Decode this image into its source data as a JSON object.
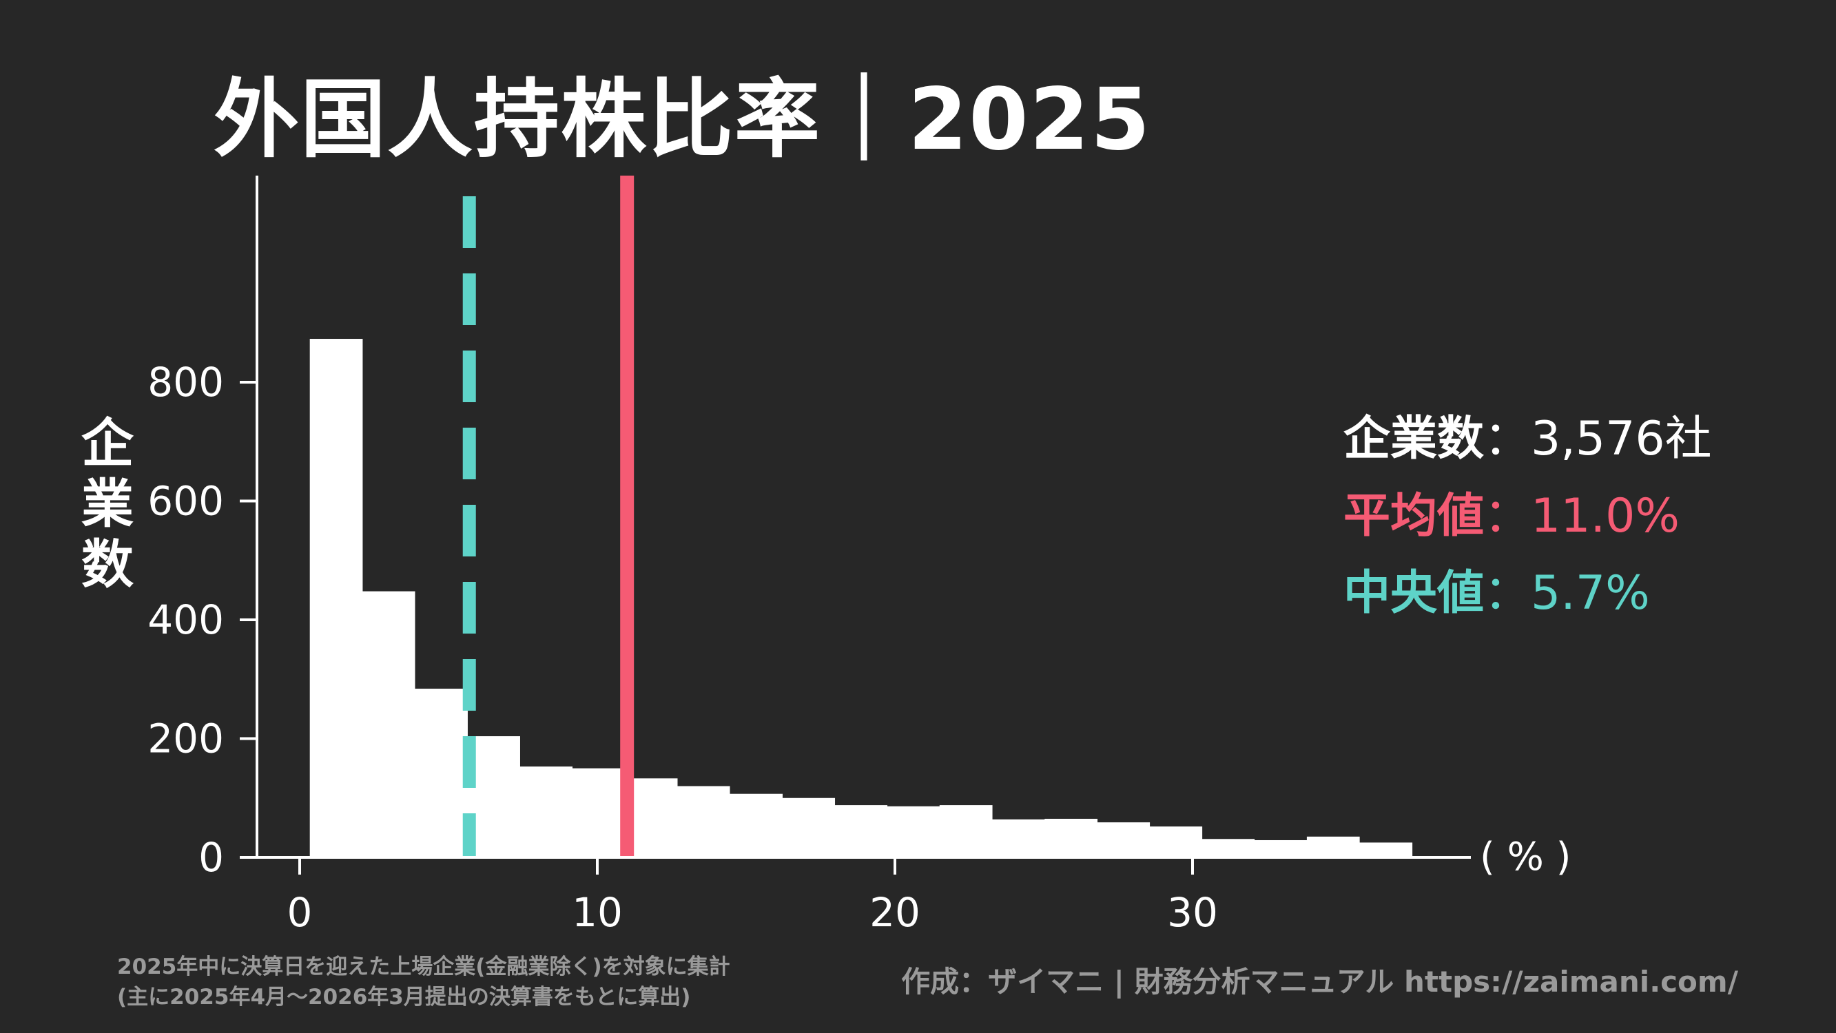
{
  "title": "外国人持株比率｜2025",
  "stats": {
    "count_label": "企業数",
    "count_value": "：3,576社",
    "mean_label": "平均値",
    "mean_value": "：11.0%",
    "median_label": "中央値",
    "median_value": "：5.7%"
  },
  "footnote": {
    "line1": "2025年中に決算日を迎えた上場企業(金融業除く)を対象に集計",
    "line2": "(主に2025年4月〜2026年3月提出の決算書をもとに算出)"
  },
  "credit": "作成：ザイマニ | 財務分析マニュアル https://zaimani.com/",
  "colors": {
    "background": "#272727",
    "bars": "#ffffff",
    "mean_line": "#f55b74",
    "median_line": "#5ed3c8",
    "footnote": "#9a9a9a"
  },
  "chart_data": {
    "type": "bar",
    "subtype": "histogram",
    "ylabel": "企業数",
    "xunit": "( % )",
    "xlim": [
      -2,
      39
    ],
    "ylim": [
      0,
      920
    ],
    "xticks": [
      0,
      10,
      20,
      30
    ],
    "yticks": [
      0,
      200,
      400,
      600,
      800
    ],
    "bin_width": 1.763,
    "bins": [
      {
        "x0": 0.34,
        "value": 873
      },
      {
        "x0": 2.1,
        "value": 448
      },
      {
        "x0": 3.87,
        "value": 284
      },
      {
        "x0": 5.63,
        "value": 204
      },
      {
        "x0": 7.39,
        "value": 153
      },
      {
        "x0": 9.15,
        "value": 150
      },
      {
        "x0": 10.92,
        "value": 133
      },
      {
        "x0": 12.68,
        "value": 120
      },
      {
        "x0": 14.45,
        "value": 107
      },
      {
        "x0": 16.21,
        "value": 100
      },
      {
        "x0": 17.97,
        "value": 88
      },
      {
        "x0": 19.73,
        "value": 86
      },
      {
        "x0": 21.5,
        "value": 88
      },
      {
        "x0": 23.26,
        "value": 64
      },
      {
        "x0": 25.03,
        "value": 65
      },
      {
        "x0": 26.79,
        "value": 59
      },
      {
        "x0": 28.55,
        "value": 52
      },
      {
        "x0": 30.31,
        "value": 31
      },
      {
        "x0": 32.08,
        "value": 29
      },
      {
        "x0": 33.84,
        "value": 35
      },
      {
        "x0": 35.61,
        "value": 25
      }
    ],
    "mean": 11.0,
    "median": 5.7
  }
}
